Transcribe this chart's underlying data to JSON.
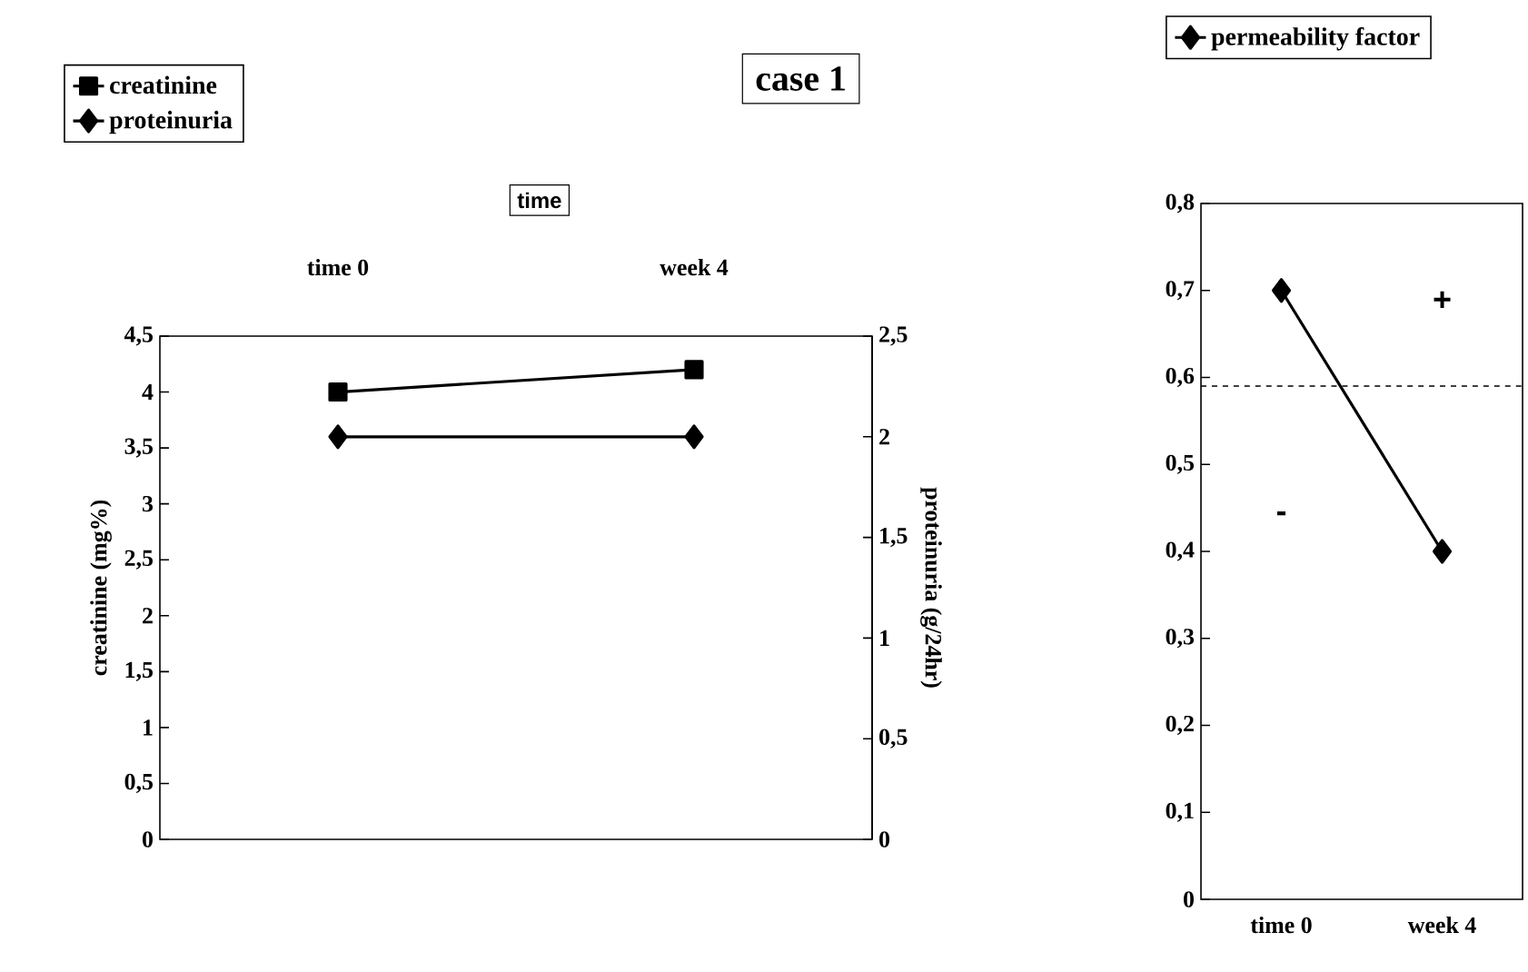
{
  "chart_data": [
    {
      "type": "line",
      "title": "case 1",
      "xlabel": "time",
      "ylabel": "creatinine (mg%)",
      "y2label": "proteinuria (g/24hr)",
      "categories": [
        "time 0",
        "week 4"
      ],
      "series": [
        {
          "name": "creatinine",
          "color": "#000000",
          "marker": "square",
          "values": [
            4.0,
            4.2
          ]
        },
        {
          "name": "proteinuria",
          "color": "#000000",
          "marker": "diamond",
          "axis": "y2",
          "values": [
            2.0,
            2.0
          ]
        }
      ],
      "ylim": [
        0,
        4.5
      ],
      "yticks": [
        0,
        {
          "value": 0.5,
          "label": "0,5"
        },
        1,
        {
          "value": 1.5,
          "label": "1,5"
        },
        2,
        {
          "value": 2.5,
          "label": "2,5"
        },
        3,
        {
          "value": 3.5,
          "label": "3,5"
        },
        4,
        {
          "value": 4.5,
          "label": "4,5"
        }
      ],
      "y2lim": [
        0,
        2.5
      ],
      "y2ticks": [
        0,
        {
          "value": 0.5,
          "label": "0,5"
        },
        1,
        {
          "value": 1.5,
          "label": "1,5"
        },
        2,
        {
          "value": 2.5,
          "label": "2,5"
        }
      ],
      "legend": "top left"
    },
    {
      "type": "line",
      "categories": [
        "time 0",
        "week 4"
      ],
      "series": [
        {
          "name": "permeability factor",
          "color": "#000000",
          "marker": "diamond",
          "values": [
            0.7,
            0.4
          ]
        }
      ],
      "ylim": [
        0,
        0.8
      ],
      "yticks": [
        0,
        {
          "value": 0.1,
          "label": "0,1"
        },
        {
          "value": 0.2,
          "label": "0,2"
        },
        {
          "value": 0.3,
          "label": "0,3"
        },
        {
          "value": 0.4,
          "label": "0,4"
        },
        {
          "value": 0.5,
          "label": "0,5"
        },
        {
          "value": 0.6,
          "label": "0,6"
        },
        {
          "value": 0.7,
          "label": "0,7"
        },
        {
          "value": 0.8,
          "label": "0,8"
        }
      ],
      "ref_lines": [
        {
          "axis": "y",
          "value": 0.59,
          "line_style": "dashed"
        }
      ],
      "annotations": [
        "+",
        "-"
      ],
      "legend": "top"
    }
  ]
}
